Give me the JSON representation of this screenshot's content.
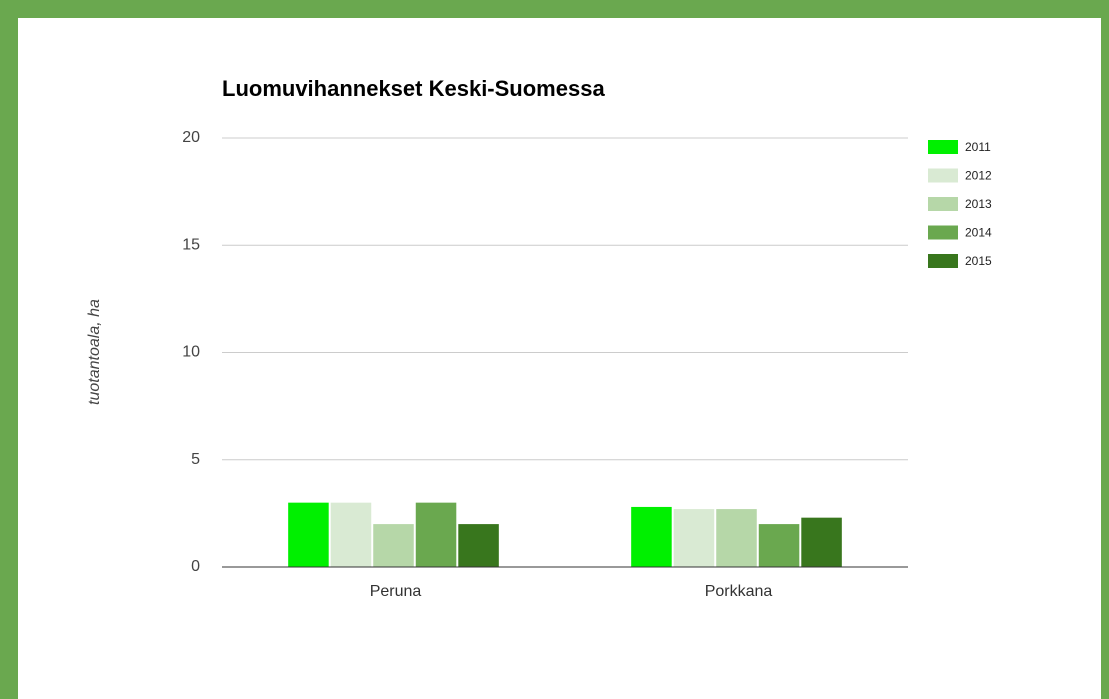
{
  "chart_data": {
    "type": "bar",
    "title": "Luomuvihannekset Keski-Suomessa",
    "y_label": "tuotantoala, ha",
    "categories": [
      "Peruna",
      "Porkkana"
    ],
    "series": [
      {
        "name": "2011",
        "color": "#00f000",
        "values": [
          3,
          2.8
        ]
      },
      {
        "name": "2012",
        "color": "#d9ead3",
        "values": [
          3,
          2.7
        ]
      },
      {
        "name": "2013",
        "color": "#b6d7a8",
        "values": [
          2,
          2.7
        ]
      },
      {
        "name": "2014",
        "color": "#6aa84f",
        "values": [
          3,
          2
        ]
      },
      {
        "name": "2015",
        "color": "#38761d",
        "values": [
          2,
          2.3
        ]
      }
    ],
    "ylim": [
      0,
      20
    ],
    "yticks": [
      0,
      5,
      10,
      15,
      20
    ],
    "grid": true,
    "legend": "right"
  }
}
